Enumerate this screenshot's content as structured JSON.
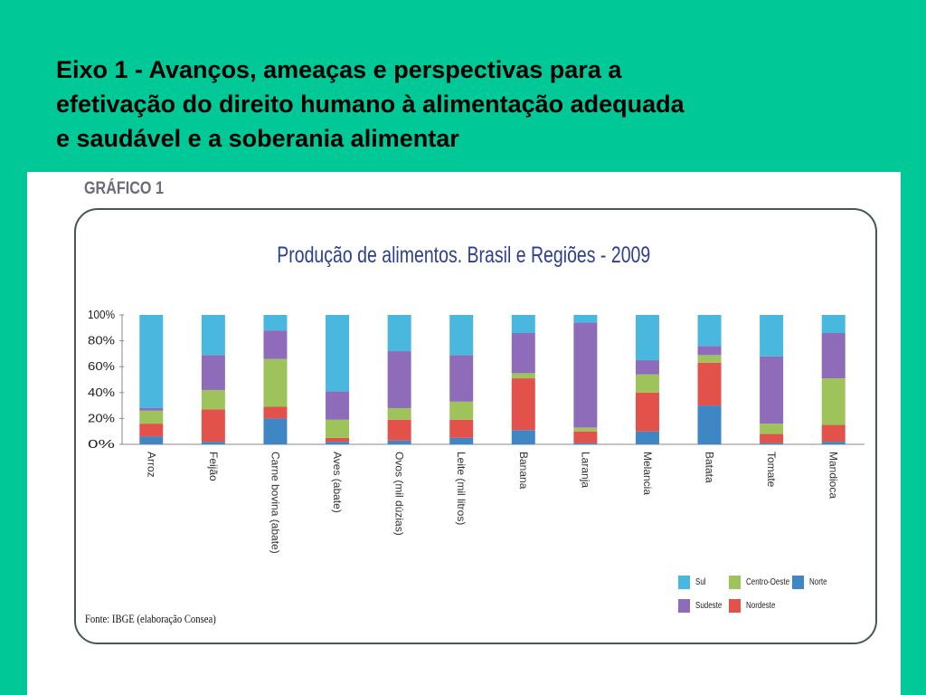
{
  "slide": {
    "title_lines": [
      "Eixo 1 -  Avanços, ameaças e perspectivas para a",
      "efetivação do direito humano à alimentação adequada",
      "e saudável e a soberania alimentar"
    ]
  },
  "figure": {
    "label": "GRÁFICO 1",
    "source": "Fonte: IBGE (elaboração Consea)"
  },
  "chart_data": {
    "type": "bar",
    "stacked": true,
    "title": "Produção de alimentos. Brasil e Regiões - 2009",
    "xlabel": "",
    "ylabel": "",
    "ylim": [
      0,
      100
    ],
    "yticks": [
      "0%",
      "20%",
      "40%",
      "60%",
      "80%",
      "100%"
    ],
    "grid": false,
    "legend_position": "bottom-right",
    "categories": [
      "Arroz",
      "Feijão",
      "Carne bovina (abate)",
      "Aves (abate)",
      "Ovos (mil dúzias)",
      "Leite (mil litros)",
      "Banana",
      "Laranja",
      "Melancia",
      "Batata",
      "Tomate",
      "Mandioca"
    ],
    "series": [
      {
        "name": "Norte",
        "color": "#3f86c4",
        "values": [
          6,
          2,
          20,
          2,
          3,
          5,
          11,
          1,
          10,
          30,
          1,
          2
        ]
      },
      {
        "name": "Nordeste",
        "color": "#e3514b",
        "values": [
          10,
          25,
          9,
          3,
          16,
          14,
          40,
          9,
          30,
          33,
          7,
          13
        ]
      },
      {
        "name": "Centro-Oeste",
        "color": "#9ec35a",
        "values": [
          10,
          15,
          37,
          14,
          9,
          14,
          4,
          3,
          14,
          6,
          8,
          36
        ]
      },
      {
        "name": "Sudeste",
        "color": "#8e6cb9",
        "values": [
          2,
          27,
          22,
          22,
          44,
          36,
          31,
          81,
          11,
          7,
          52,
          35
        ]
      },
      {
        "name": "Sul",
        "color": "#49b7de",
        "values": [
          72,
          31,
          12,
          59,
          28,
          31,
          14,
          6,
          35,
          24,
          32,
          14
        ]
      }
    ]
  }
}
